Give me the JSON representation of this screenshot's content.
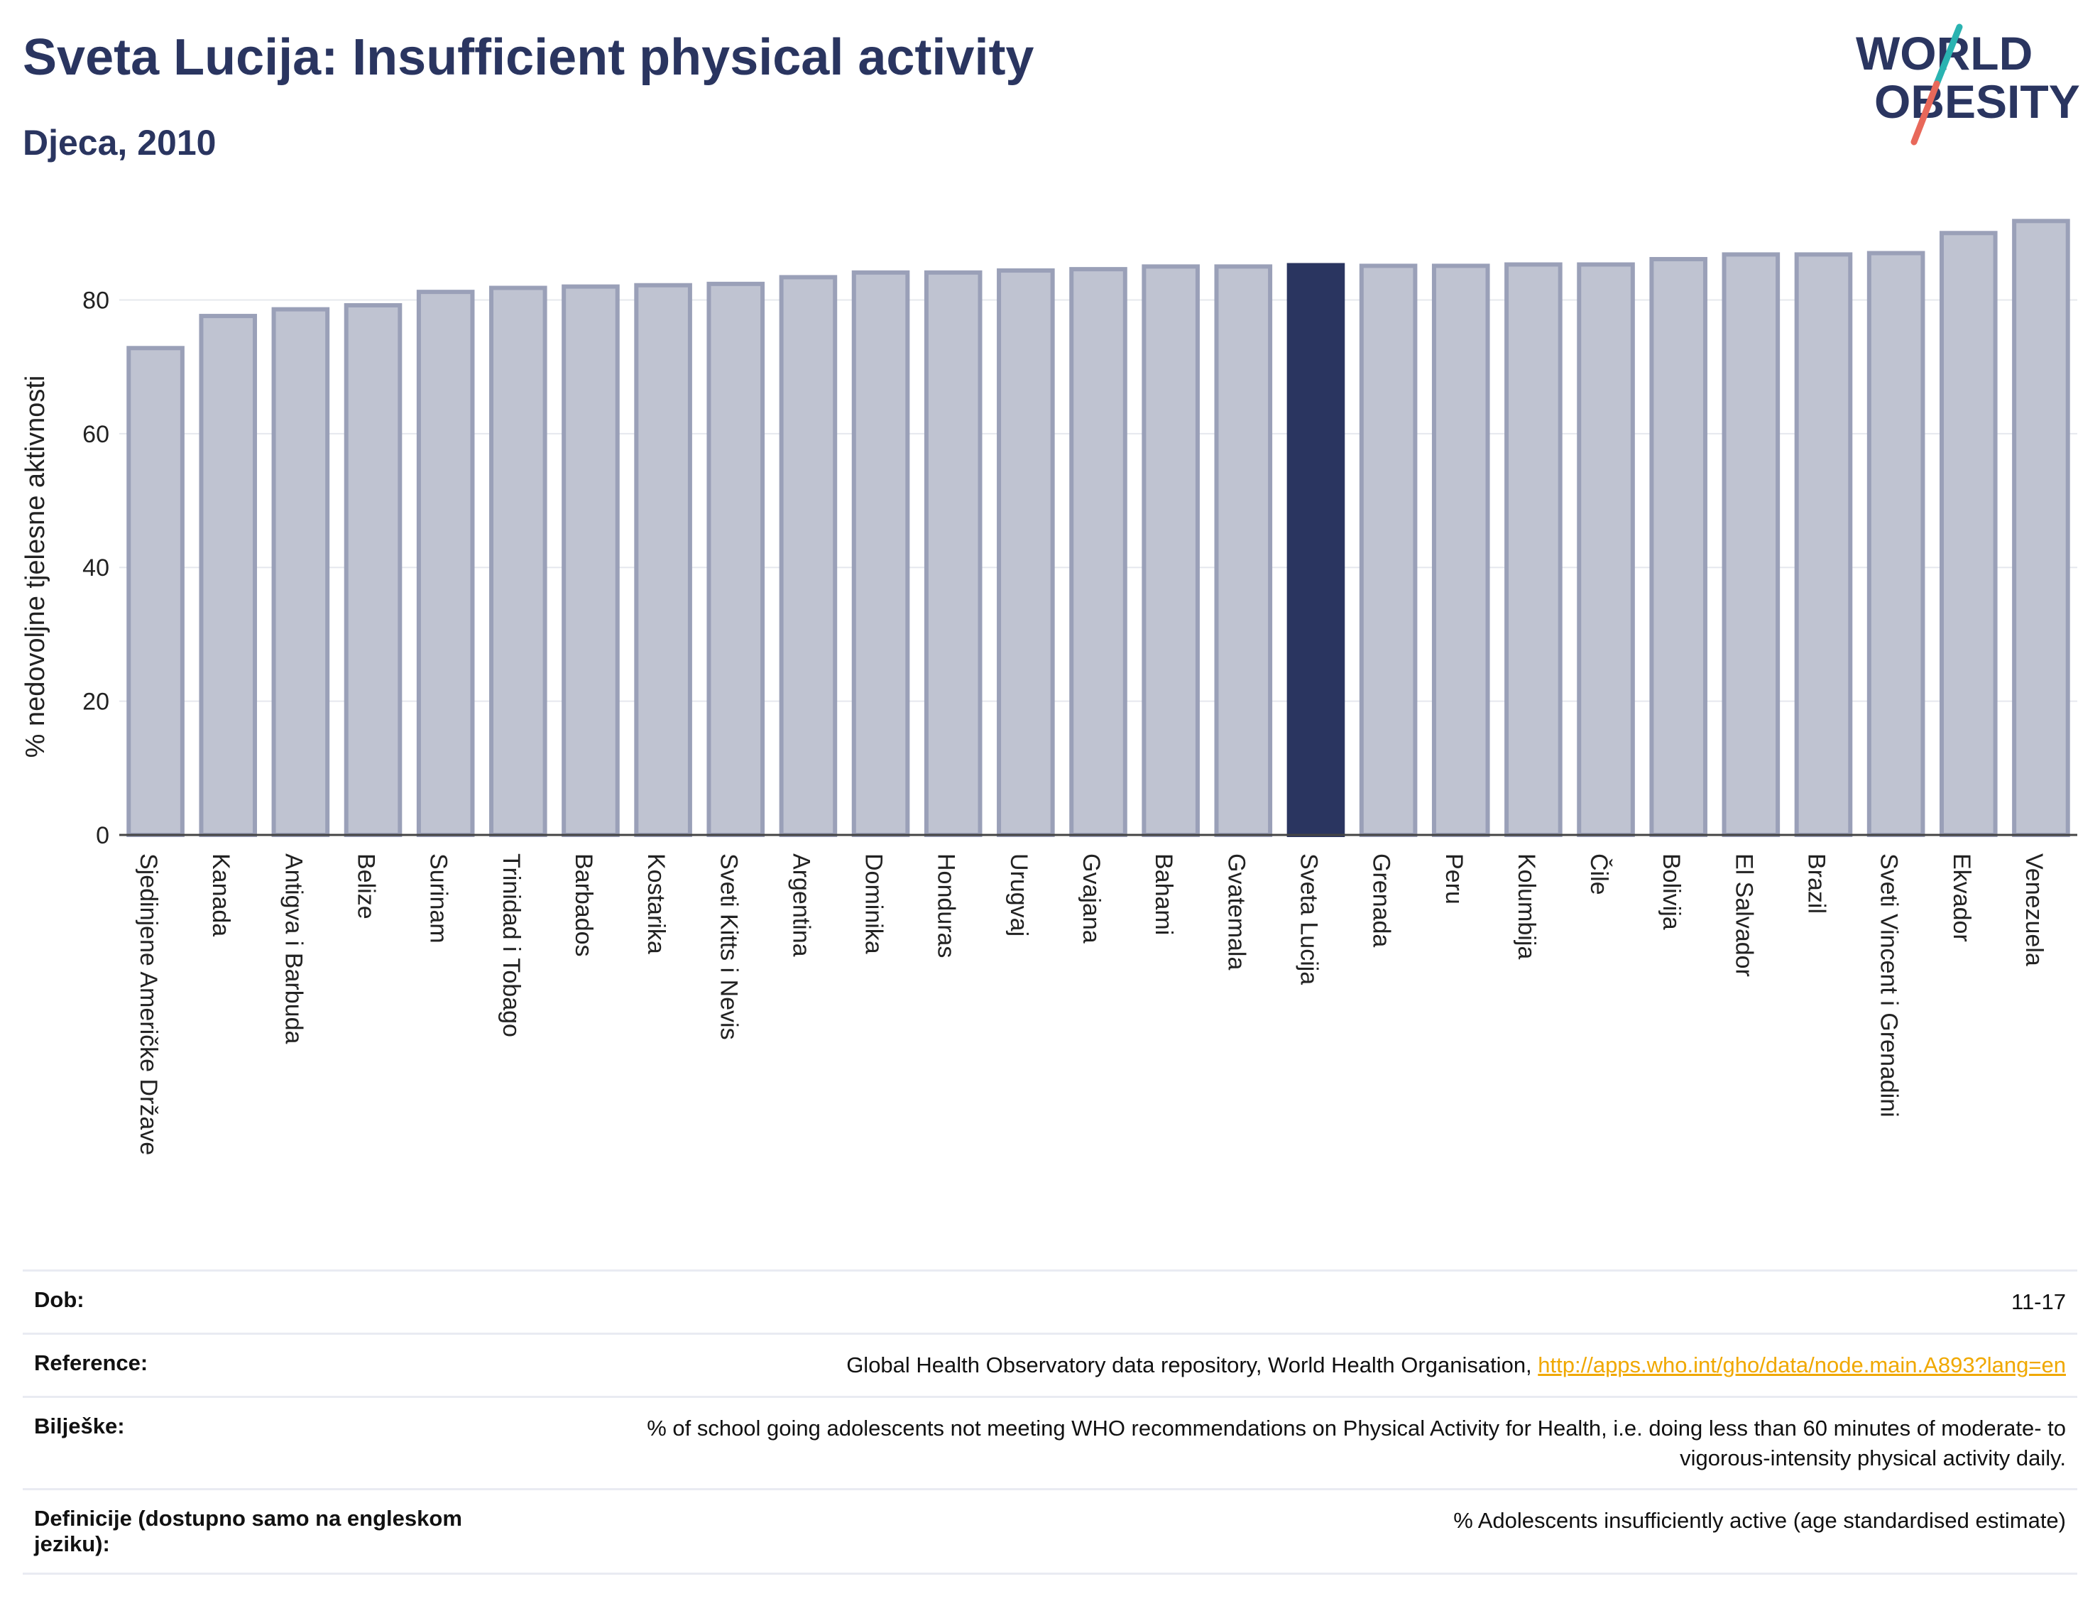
{
  "header": {
    "title": "Sveta Lucija: Insufficient physical activity",
    "subtitle": "Djeca, 2010"
  },
  "logo": {
    "line1": "WORLD",
    "line2": "OBESITY",
    "colors": {
      "text": "#2a3560",
      "slash_top": "#2ab3b1",
      "slash_bottom": "#e8685a"
    }
  },
  "chart_data": {
    "type": "bar",
    "title": "",
    "xlabel": "",
    "ylabel": "% nedovoljne tjelesne aktivnosti",
    "ylim": [
      0,
      93
    ],
    "yticks": [
      0,
      20,
      40,
      60,
      80
    ],
    "grid": true,
    "highlight": "Sveta Lucija",
    "colors": {
      "bar_fill": "#bfc3d1",
      "bar_border": "#9aa0b8",
      "highlight": "#2a3560",
      "grid": "#e6e8ee",
      "axis": "#444444"
    },
    "categories": [
      "Sjedinjene Američke Države",
      "Kanada",
      "Antigva i Barbuda",
      "Belize",
      "Surinam",
      "Trinidad i Tobago",
      "Barbados",
      "Kostarika",
      "Sveti Kitts i Nevis",
      "Argentina",
      "Dominika",
      "Honduras",
      "Urugvaj",
      "Gvajana",
      "Bahami",
      "Gvatemala",
      "Sveta Lucija",
      "Grenada",
      "Peru",
      "Kolumbija",
      "Čile",
      "Bolivija",
      "El Salvador",
      "Brazil",
      "Sveti Vincent i Grenadini",
      "Ekvador",
      "Venezuela"
    ],
    "values": [
      72.8,
      77.6,
      78.6,
      79.2,
      81.2,
      81.8,
      82.0,
      82.2,
      82.4,
      83.4,
      84.1,
      84.1,
      84.4,
      84.6,
      85.0,
      85.0,
      85.2,
      85.1,
      85.1,
      85.3,
      85.3,
      86.1,
      86.8,
      86.8,
      87.0,
      90.0,
      91.8
    ]
  },
  "meta": [
    {
      "key": "Dob:",
      "value": "11-17"
    },
    {
      "key": "Reference:",
      "value": "Global Health Observatory data repository, World Health Organisation, ",
      "link": "http://apps.who.int/gho/data/node.main.A893?lang=en"
    },
    {
      "key": "Bilješke:",
      "value": "% of school going adolescents not meeting WHO recommendations on Physical Activity for Health, i.e. doing less than 60 minutes of moderate- to vigorous-intensity physical activity daily."
    },
    {
      "key": "Definicije (dostupno samo na engleskom jeziku):",
      "value": "% Adolescents insufficiently active (age standardised estimate)"
    }
  ]
}
